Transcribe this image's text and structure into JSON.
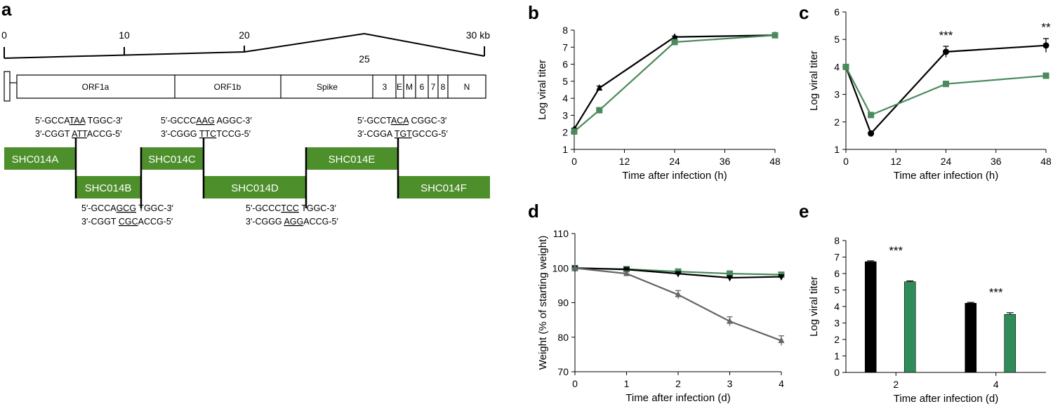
{
  "colors": {
    "black": "#000000",
    "green": "#4a8a5c",
    "gray": "#666666",
    "green_fill": "#4d8f2a",
    "bar_green": "#2f8c58"
  },
  "panel_a": {
    "letter": "a",
    "scale_ticks": [
      "0",
      "10",
      "20",
      "25",
      "30 kb"
    ],
    "genes": [
      "ORF1a",
      "ORF1b",
      "Spike",
      "3",
      "E",
      "M",
      "6",
      "7",
      "8",
      "N"
    ],
    "fragments_top": [
      "SHC014A",
      "SHC014C",
      "SHC014E"
    ],
    "fragments_bottom": [
      "SHC014B",
      "SHC014D",
      "SHC014F"
    ],
    "junction_AB": {
      "top": [
        "5′-GCCA",
        "TAA",
        " TGGC-3′"
      ],
      "bottom": [
        "3′-CGGT ",
        "ATT",
        "ACCG-5′"
      ]
    },
    "junction_CD": {
      "top": [
        "5′-GCCC",
        "AAG",
        " AGGC-3′"
      ],
      "bottom": [
        "3′-CGGG  ",
        "TTC",
        "TCCG-5′"
      ]
    },
    "junction_EF": {
      "top": [
        "5′-GCCT",
        "ACA",
        " CGGC-3′"
      ],
      "bottom": [
        "3′-CGGA ",
        "TGT",
        "GCCG-5′"
      ]
    },
    "junction_BC": {
      "top": [
        "5′-GCCA",
        "GCG",
        " TGGC-3′"
      ],
      "bottom": [
        "3′-CGGT ",
        "CGC",
        "ACCG-5′"
      ]
    },
    "junction_DE": {
      "top": [
        "5′-GCCC",
        "TCC",
        "  TGGC-3′"
      ],
      "bottom": [
        "3′-CGGG ",
        "AGG",
        "ACCG-5′"
      ]
    }
  },
  "chart_data": [
    {
      "panel": "b",
      "type": "line",
      "xlabel": "Time after infection (h)",
      "ylabel": "Log viral titer",
      "xlim": [
        0,
        48
      ],
      "ylim": [
        1,
        8
      ],
      "xticks": [
        0,
        12,
        24,
        36,
        48
      ],
      "yticks": [
        1,
        2,
        3,
        4,
        5,
        6,
        7,
        8
      ],
      "series": [
        {
          "color": "#000000",
          "marker": "triangle",
          "x": [
            0,
            6,
            24,
            48
          ],
          "y": [
            2.2,
            4.6,
            7.6,
            7.7
          ],
          "err": [
            0.05,
            0.12,
            0.05,
            0.05
          ]
        },
        {
          "color": "#4a8a5c",
          "marker": "square",
          "x": [
            0,
            6,
            24,
            48
          ],
          "y": [
            2.05,
            3.3,
            7.3,
            7.7
          ],
          "err": [
            0.05,
            0.08,
            0.08,
            0.05
          ]
        }
      ],
      "annotations": []
    },
    {
      "panel": "c",
      "type": "line",
      "xlabel": "Time after infection (h)",
      "ylabel": "Log viral titer",
      "xlim": [
        0,
        48
      ],
      "ylim": [
        1,
        6
      ],
      "xticks": [
        0,
        12,
        24,
        36,
        48
      ],
      "yticks": [
        1,
        2,
        3,
        4,
        5,
        6
      ],
      "series": [
        {
          "color": "#000000",
          "marker": "circle",
          "x": [
            0,
            6,
            24,
            48
          ],
          "y": [
            4.0,
            1.58,
            4.55,
            4.78
          ],
          "err": [
            0.05,
            0.05,
            0.2,
            0.25
          ]
        },
        {
          "color": "#4a8a5c",
          "marker": "square",
          "x": [
            0,
            6,
            24,
            48
          ],
          "y": [
            4.0,
            2.25,
            3.38,
            3.68
          ],
          "err": [
            0.05,
            0.1,
            0.1,
            0.05
          ]
        }
      ],
      "annotations": [
        {
          "x": 24,
          "y": 5.0,
          "text": "***"
        },
        {
          "x": 48,
          "y": 5.3,
          "text": "**"
        }
      ]
    },
    {
      "panel": "d",
      "type": "line",
      "xlabel": "Time after infection (d)",
      "ylabel": "Weight (% of starting weight)",
      "xlim": [
        0,
        4
      ],
      "ylim": [
        70,
        110
      ],
      "xticks": [
        0,
        1,
        2,
        3,
        4
      ],
      "yticks": [
        70,
        80,
        90,
        100,
        110
      ],
      "series": [
        {
          "color": "#4a8a5c",
          "marker": "square",
          "x": [
            0,
            1,
            2,
            3,
            4
          ],
          "y": [
            100,
            99.7,
            99.0,
            98.4,
            98.1
          ],
          "err": [
            0.2,
            0.4,
            0.5,
            0.5,
            0.5
          ]
        },
        {
          "color": "#000000",
          "marker": "triangle-down",
          "x": [
            0,
            1,
            2,
            3,
            4
          ],
          "y": [
            100,
            99.6,
            98.4,
            97.2,
            97.5
          ],
          "err": [
            0.2,
            0.3,
            0.4,
            0.5,
            0.4
          ]
        },
        {
          "color": "#666666",
          "marker": "triangle",
          "x": [
            0,
            1,
            2,
            3,
            4
          ],
          "y": [
            100,
            98.4,
            92.3,
            84.6,
            79.0
          ],
          "err": [
            0.2,
            0.6,
            1.2,
            1.3,
            1.4
          ]
        }
      ],
      "annotations": []
    },
    {
      "panel": "e",
      "type": "bar",
      "xlabel": "Time after infection (d)",
      "ylabel": "Log viral titer",
      "categories": [
        "2",
        "4"
      ],
      "ylim": [
        0,
        8
      ],
      "yticks": [
        0,
        1,
        2,
        3,
        4,
        5,
        6,
        7,
        8
      ],
      "series": [
        {
          "color": "#000000",
          "values": [
            6.72,
            4.2
          ],
          "err": [
            0.05,
            0.05
          ]
        },
        {
          "color": "#2f8c58",
          "values": [
            5.5,
            3.52
          ],
          "err": [
            0.05,
            0.1
          ]
        }
      ],
      "annotations": [
        {
          "category": 0,
          "y": 7.15,
          "text": "***"
        },
        {
          "category": 1,
          "y": 4.62,
          "text": "***"
        }
      ]
    }
  ]
}
